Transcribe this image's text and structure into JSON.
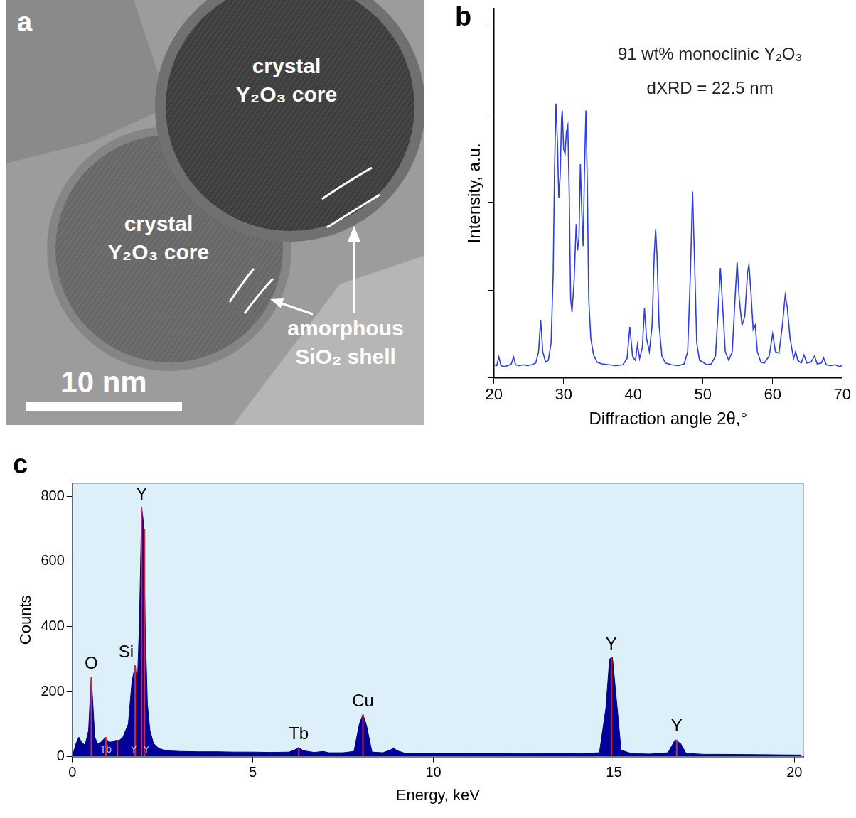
{
  "figure": {
    "panel_a": {
      "letter": "a",
      "core_labels": [
        "crystal Y₂O₃ core",
        "crystal Y₂O₃ core"
      ],
      "shell_label": "amorphous SiO₂ shell",
      "scale_bar": "10 nm"
    }
  },
  "chart_data": [
    {
      "letter": "b",
      "type": "line",
      "x_label": "Diffraction angle 2θ,°",
      "y_label": "Intensity, a.u.",
      "annotations": [
        "91 wt% monoclinic Y₂O₃",
        "dXRD = 22.5 nm"
      ],
      "x": [
        20.0,
        20.4,
        20.7,
        21.0,
        21.5,
        22.0,
        22.5,
        22.8,
        23.1,
        23.6,
        24.2,
        24.8,
        25.4,
        26.0,
        26.4,
        26.7,
        27.0,
        27.4,
        27.8,
        28.2,
        28.5,
        28.7,
        28.9,
        29.1,
        29.3,
        29.5,
        29.7,
        29.8,
        30.0,
        30.2,
        30.4,
        30.6,
        30.8,
        31.0,
        31.2,
        31.5,
        31.8,
        32.0,
        32.2,
        32.4,
        32.6,
        32.8,
        33.0,
        33.2,
        33.4,
        33.6,
        33.9,
        34.3,
        34.8,
        35.5,
        36.5,
        37.5,
        38.5,
        39.1,
        39.5,
        39.9,
        40.3,
        40.6,
        40.9,
        41.3,
        41.6,
        41.9,
        42.3,
        42.7,
        43.0,
        43.2,
        43.4,
        43.7,
        44.1,
        44.6,
        45.5,
        46.5,
        47.3,
        47.8,
        48.2,
        48.5,
        48.8,
        49.1,
        49.5,
        50.0,
        50.5,
        51.2,
        51.8,
        52.2,
        52.5,
        52.8,
        53.2,
        53.7,
        54.2,
        54.6,
        54.9,
        55.2,
        55.6,
        56.0,
        56.4,
        56.6,
        56.9,
        57.2,
        57.5,
        57.8,
        58.3,
        58.8,
        59.5,
        60.0,
        60.4,
        60.9,
        61.4,
        61.8,
        62.1,
        62.5,
        63.0,
        63.3,
        63.6,
        64.1,
        64.5,
        64.9,
        65.5,
        66.0,
        66.4,
        67.0,
        67.3,
        67.7,
        68.3,
        69.0,
        69.5,
        70.0
      ],
      "values": [
        0.15,
        0.14,
        0.24,
        0.14,
        0.13,
        0.14,
        0.16,
        0.24,
        0.15,
        0.14,
        0.15,
        0.14,
        0.15,
        0.17,
        0.3,
        0.66,
        0.3,
        0.18,
        0.2,
        0.4,
        1.2,
        2.4,
        3.12,
        2.7,
        2.05,
        2.3,
        2.95,
        3.04,
        2.6,
        2.55,
        2.8,
        2.87,
        2.1,
        0.9,
        0.75,
        1.1,
        1.75,
        1.45,
        1.6,
        2.43,
        1.9,
        1.5,
        2.4,
        3.04,
        2.2,
        0.9,
        0.45,
        0.26,
        0.18,
        0.16,
        0.15,
        0.14,
        0.15,
        0.22,
        0.58,
        0.24,
        0.2,
        0.38,
        0.22,
        0.35,
        0.79,
        0.45,
        0.3,
        0.6,
        1.4,
        1.69,
        1.4,
        0.6,
        0.25,
        0.17,
        0.15,
        0.14,
        0.16,
        0.3,
        1.2,
        2.12,
        1.3,
        0.4,
        0.2,
        0.18,
        0.15,
        0.16,
        0.25,
        0.8,
        1.25,
        0.85,
        0.3,
        0.2,
        0.3,
        0.9,
        1.32,
        0.9,
        0.6,
        0.7,
        1.2,
        1.29,
        0.95,
        0.55,
        0.6,
        0.3,
        0.18,
        0.17,
        0.25,
        0.5,
        0.3,
        0.28,
        0.6,
        0.94,
        0.8,
        0.45,
        0.22,
        0.3,
        0.2,
        0.17,
        0.26,
        0.17,
        0.18,
        0.25,
        0.16,
        0.17,
        0.23,
        0.15,
        0.14,
        0.15,
        0.13,
        0.14
      ],
      "color": "#2b3cf0",
      "xlim": [
        20,
        70
      ],
      "xticks": [
        20,
        30,
        40,
        50,
        60,
        70
      ],
      "ylim": [
        0,
        4.2
      ],
      "yticks": [
        0,
        1,
        2,
        3,
        4
      ],
      "tick_labels": "x",
      "grid": false
    },
    {
      "letter": "c",
      "type": "area",
      "x_label": "Energy, keV",
      "y_label": "Counts",
      "x": [
        0,
        0.1,
        0.18,
        0.25,
        0.35,
        0.45,
        0.5,
        0.525,
        0.56,
        0.62,
        0.7,
        0.8,
        0.92,
        1.0,
        1.1,
        1.2,
        1.3,
        1.4,
        1.55,
        1.65,
        1.74,
        1.8,
        1.86,
        1.92,
        1.97,
        2.02,
        2.08,
        2.15,
        2.25,
        2.4,
        2.6,
        3.0,
        3.5,
        4.0,
        4.5,
        5.0,
        5.5,
        6.0,
        6.15,
        6.27,
        6.4,
        6.7,
        6.95,
        7.1,
        7.5,
        7.8,
        7.95,
        8.05,
        8.15,
        8.3,
        8.6,
        8.8,
        8.9,
        9.0,
        9.2,
        10,
        11,
        12,
        13,
        14,
        14.6,
        14.78,
        14.88,
        14.96,
        15.05,
        15.2,
        15.5,
        16,
        16.5,
        16.7,
        16.85,
        17,
        17.5,
        18,
        19,
        20,
        20.2
      ],
      "values": [
        0,
        40,
        60,
        45,
        35,
        80,
        200,
        245,
        180,
        60,
        40,
        45,
        60,
        45,
        45,
        50,
        50,
        60,
        100,
        230,
        280,
        220,
        420,
        765,
        720,
        400,
        160,
        80,
        40,
        25,
        18,
        16,
        15,
        15,
        14,
        14,
        13,
        14,
        20,
        28,
        18,
        13,
        16,
        12,
        12,
        16,
        100,
        130,
        95,
        14,
        12,
        20,
        27,
        18,
        11,
        10,
        10,
        10,
        9,
        9,
        12,
        150,
        300,
        305,
        200,
        20,
        9,
        8,
        12,
        52,
        40,
        10,
        7,
        7,
        6,
        5,
        5
      ],
      "color": "#000099",
      "xlim": [
        0,
        20.25
      ],
      "xticks": [
        0,
        5,
        10,
        15,
        20
      ],
      "ylim": [
        0,
        840
      ],
      "yticks": [
        0,
        200,
        400,
        600,
        800
      ],
      "grid": false,
      "peak_lines": {
        "x": [
          0.525,
          0.93,
          1.25,
          1.74,
          1.92,
          2.0,
          6.27,
          8.05,
          14.93,
          16.74
        ],
        "values": [
          245,
          60,
          50,
          280,
          765,
          700,
          28,
          130,
          305,
          52
        ],
        "color": "#e8202a"
      },
      "peak_labels": [
        {
          "text": "O",
          "x": 0.525
        },
        {
          "text": "Si",
          "x": 1.74
        },
        {
          "text": "Y",
          "x": 1.92
        },
        {
          "text": "Tb",
          "x": 6.27
        },
        {
          "text": "Cu",
          "x": 8.05
        },
        {
          "text": "Y",
          "x": 14.93
        },
        {
          "text": "Y",
          "x": 16.74
        }
      ],
      "line_labels": [
        {
          "text": "Tb",
          "x": 0.93
        },
        {
          "text": "Y",
          "x": 1.7
        },
        {
          "text": "Y",
          "x": 2.05
        }
      ]
    }
  ]
}
